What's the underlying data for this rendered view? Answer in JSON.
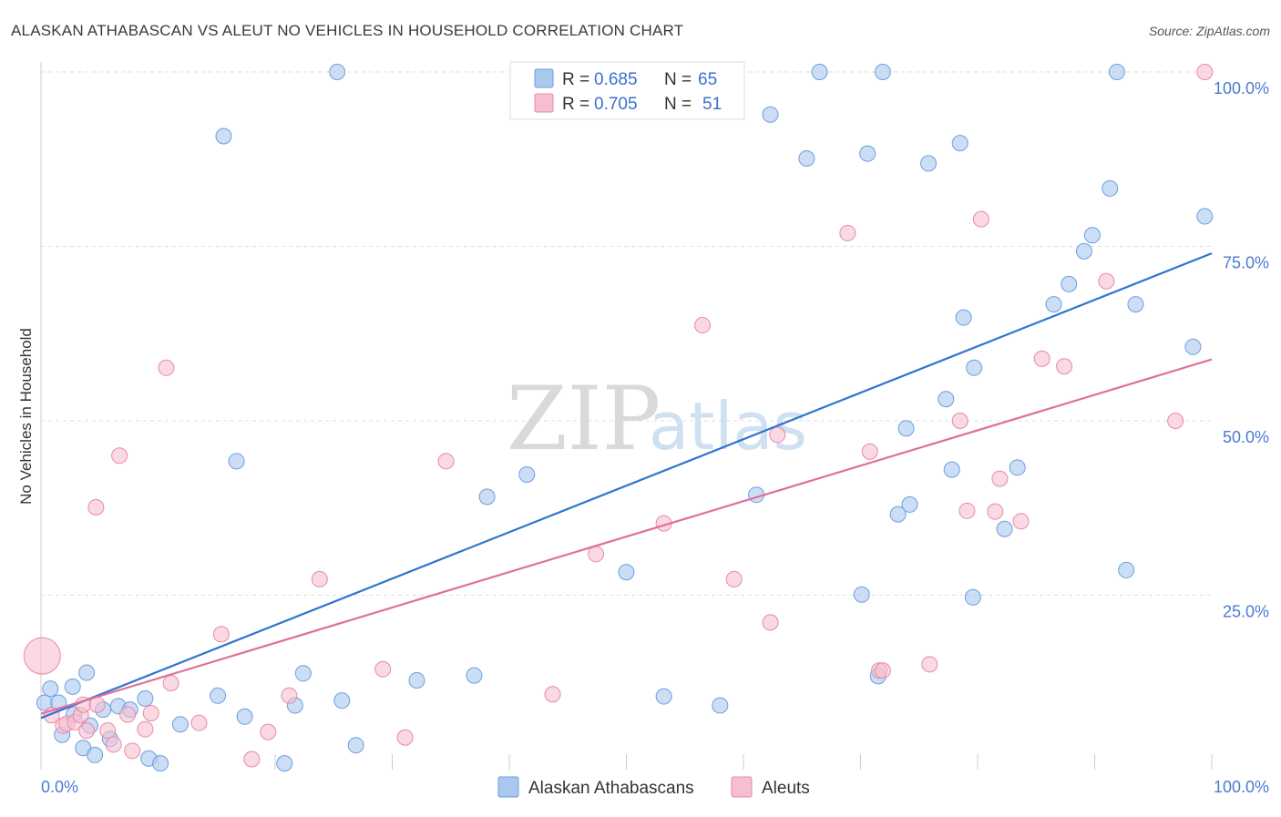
{
  "header": {
    "title": "ALASKAN ATHABASCAN VS ALEUT NO VEHICLES IN HOUSEHOLD CORRELATION CHART",
    "source": "Source: ZipAtlas.com"
  },
  "watermark": {
    "zip": "ZIP",
    "atlas": "atlas"
  },
  "legend": {
    "rows": [
      {
        "r_label": "R =",
        "r_value": "0.685",
        "n_label": "N =",
        "n_value": "65"
      },
      {
        "r_label": "R =",
        "r_value": "0.705",
        "n_label": "N =",
        "n_value": "51"
      }
    ]
  },
  "bottom_legend": {
    "items": [
      {
        "label": "Alaskan Athabascans"
      },
      {
        "label": "Aleuts"
      }
    ]
  },
  "colors": {
    "blue_fill": "#a9c8f0",
    "blue_stroke": "#6e9ede",
    "blue_line": "#2f74d0",
    "pink_fill": "#f6bfd0",
    "pink_stroke": "#e68aa8",
    "pink_line": "#e0709a",
    "grid": "#dddddd",
    "tick_label": "#4a7bd0"
  },
  "chart_data": {
    "type": "scatter",
    "title": "ALASKAN ATHABASCAN VS ALEUT NO VEHICLES IN HOUSEHOLD CORRELATION CHART",
    "xlabel": "",
    "ylabel": "No Vehicles in Household",
    "xlim": [
      0,
      100
    ],
    "ylim": [
      0,
      100
    ],
    "y_ticks": [
      {
        "value": 25,
        "label": "25.0%"
      },
      {
        "value": 50,
        "label": "50.0%"
      },
      {
        "value": 75,
        "label": "75.0%"
      },
      {
        "value": 100,
        "label": "100.0%"
      }
    ],
    "x_ticks": [
      {
        "value": 0,
        "label": "0.0%"
      },
      {
        "value": 100,
        "label": "100.0%"
      }
    ],
    "x_minor_ticks": [
      0,
      10,
      20,
      30,
      40,
      50,
      60,
      70,
      80,
      90,
      100
    ],
    "grid": true,
    "series": [
      {
        "name": "Alaskan Athabascans",
        "r": 0.685,
        "n": 65,
        "trend": {
          "x0": 0,
          "y0": 7.4,
          "x1": 100,
          "y1": 74.0
        },
        "points": [
          [
            0.3,
            9.6
          ],
          [
            0.8,
            11.6
          ],
          [
            1.5,
            9.6
          ],
          [
            1.8,
            5.0
          ],
          [
            2.8,
            7.9
          ],
          [
            2.7,
            11.9
          ],
          [
            3.6,
            3.1
          ],
          [
            3.9,
            13.9
          ],
          [
            4.2,
            6.3
          ],
          [
            4.6,
            2.1
          ],
          [
            5.3,
            8.6
          ],
          [
            5.9,
            4.4
          ],
          [
            6.6,
            9.1
          ],
          [
            7.6,
            8.6
          ],
          [
            8.9,
            10.2
          ],
          [
            9.2,
            1.6
          ],
          [
            10.2,
            0.9
          ],
          [
            11.9,
            6.5
          ],
          [
            15.1,
            10.6
          ],
          [
            15.6,
            90.8
          ],
          [
            16.7,
            44.2
          ],
          [
            17.4,
            7.6
          ],
          [
            20.8,
            0.9
          ],
          [
            21.7,
            9.2
          ],
          [
            22.4,
            13.8
          ],
          [
            25.3,
            100.0
          ],
          [
            25.7,
            9.9
          ],
          [
            26.9,
            3.5
          ],
          [
            32.1,
            12.8
          ],
          [
            37.0,
            13.5
          ],
          [
            38.1,
            39.1
          ],
          [
            41.5,
            42.3
          ],
          [
            50.0,
            28.3
          ],
          [
            53.2,
            10.5
          ],
          [
            58.0,
            9.2
          ],
          [
            61.1,
            39.4
          ],
          [
            62.3,
            93.9
          ],
          [
            65.4,
            87.6
          ],
          [
            66.5,
            100.0
          ],
          [
            70.1,
            25.1
          ],
          [
            70.6,
            88.3
          ],
          [
            71.5,
            13.4
          ],
          [
            71.9,
            100.0
          ],
          [
            73.2,
            36.6
          ],
          [
            73.9,
            48.9
          ],
          [
            74.2,
            38.0
          ],
          [
            75.8,
            86.9
          ],
          [
            77.3,
            53.1
          ],
          [
            77.8,
            43.0
          ],
          [
            78.5,
            89.8
          ],
          [
            78.8,
            64.8
          ],
          [
            79.6,
            24.7
          ],
          [
            79.7,
            57.6
          ],
          [
            82.3,
            34.5
          ],
          [
            83.4,
            43.3
          ],
          [
            86.5,
            66.7
          ],
          [
            87.8,
            69.6
          ],
          [
            89.1,
            74.3
          ],
          [
            89.8,
            76.6
          ],
          [
            91.3,
            83.3
          ],
          [
            91.9,
            100.0
          ],
          [
            92.7,
            28.6
          ],
          [
            93.5,
            66.7
          ],
          [
            98.4,
            60.6
          ],
          [
            99.4,
            79.3
          ]
        ]
      },
      {
        "name": "Aleuts",
        "r": 0.705,
        "n": 51,
        "trend": {
          "x0": 0,
          "y0": 8.0,
          "x1": 100,
          "y1": 58.8
        },
        "points": [
          [
            0.1,
            16.3
          ],
          [
            0.9,
            7.8
          ],
          [
            1.9,
            6.3
          ],
          [
            2.2,
            6.6
          ],
          [
            2.9,
            6.8
          ],
          [
            3.4,
            7.8
          ],
          [
            3.6,
            9.3
          ],
          [
            3.9,
            5.6
          ],
          [
            4.7,
            37.6
          ],
          [
            4.8,
            9.3
          ],
          [
            5.7,
            5.6
          ],
          [
            6.2,
            3.6
          ],
          [
            6.7,
            45.0
          ],
          [
            7.4,
            7.9
          ],
          [
            7.8,
            2.7
          ],
          [
            8.9,
            5.8
          ],
          [
            9.4,
            8.1
          ],
          [
            10.7,
            57.6
          ],
          [
            11.1,
            12.4
          ],
          [
            13.5,
            6.7
          ],
          [
            15.4,
            19.4
          ],
          [
            18.0,
            1.5
          ],
          [
            19.4,
            5.4
          ],
          [
            21.2,
            10.6
          ],
          [
            23.8,
            27.3
          ],
          [
            29.2,
            14.4
          ],
          [
            31.1,
            4.6
          ],
          [
            34.6,
            44.2
          ],
          [
            43.7,
            10.8
          ],
          [
            47.4,
            30.9
          ],
          [
            53.2,
            35.3
          ],
          [
            56.5,
            63.7
          ],
          [
            59.2,
            27.3
          ],
          [
            62.3,
            21.1
          ],
          [
            62.9,
            48.0
          ],
          [
            68.9,
            76.9
          ],
          [
            70.8,
            45.6
          ],
          [
            71.6,
            14.2
          ],
          [
            71.9,
            14.2
          ],
          [
            75.9,
            15.1
          ],
          [
            78.5,
            50.0
          ],
          [
            79.1,
            37.1
          ],
          [
            80.3,
            78.9
          ],
          [
            81.5,
            37.0
          ],
          [
            81.9,
            41.7
          ],
          [
            83.7,
            35.6
          ],
          [
            85.5,
            58.9
          ],
          [
            87.4,
            57.8
          ],
          [
            91.0,
            70.0
          ],
          [
            96.9,
            50.0
          ],
          [
            99.4,
            100.0
          ]
        ]
      }
    ]
  }
}
